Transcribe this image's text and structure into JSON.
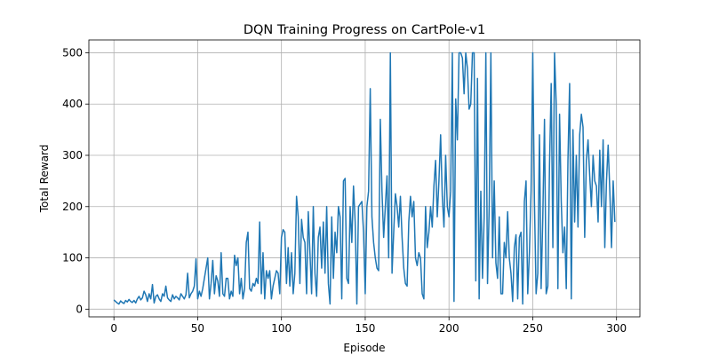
{
  "chart_data": {
    "type": "line",
    "title": "DQN Training Progress on CartPole-v1",
    "xlabel": "Episode",
    "ylabel": "Total Reward",
    "x": [
      0,
      1,
      2,
      3,
      4,
      5,
      6,
      7,
      8,
      9,
      10,
      11,
      12,
      13,
      14,
      15,
      16,
      17,
      18,
      19,
      20,
      21,
      22,
      23,
      24,
      25,
      26,
      27,
      28,
      29,
      30,
      31,
      32,
      33,
      34,
      35,
      36,
      37,
      38,
      39,
      40,
      41,
      42,
      43,
      44,
      45,
      46,
      47,
      48,
      49,
      50,
      51,
      52,
      53,
      54,
      55,
      56,
      57,
      58,
      59,
      60,
      61,
      62,
      63,
      64,
      65,
      66,
      67,
      68,
      69,
      70,
      71,
      72,
      73,
      74,
      75,
      76,
      77,
      78,
      79,
      80,
      81,
      82,
      83,
      84,
      85,
      86,
      87,
      88,
      89,
      90,
      91,
      92,
      93,
      94,
      95,
      96,
      97,
      98,
      99,
      100,
      101,
      102,
      103,
      104,
      105,
      106,
      107,
      108,
      109,
      110,
      111,
      112,
      113,
      114,
      115,
      116,
      117,
      118,
      119,
      120,
      121,
      122,
      123,
      124,
      125,
      126,
      127,
      128,
      129,
      130,
      131,
      132,
      133,
      134,
      135,
      136,
      137,
      138,
      139,
      140,
      141,
      142,
      143,
      144,
      145,
      146,
      147,
      148,
      149,
      150,
      151,
      152,
      153,
      154,
      155,
      156,
      157,
      158,
      159,
      160,
      161,
      162,
      163,
      164,
      165,
      166,
      167,
      168,
      169,
      170,
      171,
      172,
      173,
      174,
      175,
      176,
      177,
      178,
      179,
      180,
      181,
      182,
      183,
      184,
      185,
      186,
      187,
      188,
      189,
      190,
      191,
      192,
      193,
      194,
      195,
      196,
      197,
      198,
      199,
      200,
      201,
      202,
      203,
      204,
      205,
      206,
      207,
      208,
      209,
      210,
      211,
      212,
      213,
      214,
      215,
      216,
      217,
      218,
      219,
      220,
      221,
      222,
      223,
      224,
      225,
      226,
      227,
      228,
      229,
      230,
      231,
      232,
      233,
      234,
      235,
      236,
      237,
      238,
      239,
      240,
      241,
      242,
      243,
      244,
      245,
      246,
      247,
      248,
      249,
      250,
      251,
      252,
      253,
      254,
      255,
      256,
      257,
      258,
      259,
      260,
      261,
      262,
      263,
      264,
      265,
      266,
      267,
      268,
      269,
      270,
      271,
      272,
      273,
      274,
      275,
      276,
      277,
      278,
      279,
      280,
      281,
      282,
      283,
      284,
      285,
      286,
      287,
      288,
      289,
      290,
      291,
      292,
      293,
      294,
      295,
      296,
      297,
      298,
      299
    ],
    "series": [
      {
        "name": "Total Reward",
        "color": "#1f77b4",
        "values": [
          18,
          15,
          12,
          10,
          16,
          13,
          11,
          17,
          14,
          19,
          15,
          13,
          17,
          12,
          20,
          25,
          18,
          22,
          35,
          28,
          15,
          30,
          20,
          48,
          12,
          25,
          28,
          20,
          15,
          30,
          25,
          45,
          22,
          18,
          15,
          28,
          20,
          25,
          22,
          18,
          30,
          25,
          20,
          28,
          70,
          22,
          30,
          35,
          45,
          98,
          20,
          35,
          25,
          40,
          60,
          80,
          100,
          20,
          50,
          95,
          30,
          65,
          55,
          25,
          110,
          30,
          25,
          60,
          60,
          20,
          35,
          25,
          105,
          85,
          100,
          30,
          60,
          20,
          40,
          130,
          150,
          40,
          35,
          50,
          45,
          60,
          50,
          170,
          30,
          110,
          20,
          75,
          60,
          75,
          20,
          45,
          60,
          75,
          70,
          30,
          140,
          155,
          150,
          50,
          120,
          45,
          110,
          30,
          70,
          220,
          180,
          50,
          175,
          140,
          130,
          30,
          190,
          110,
          30,
          200,
          70,
          25,
          140,
          160,
          80,
          170,
          70,
          200,
          50,
          10,
          180,
          60,
          150,
          110,
          200,
          180,
          20,
          250,
          255,
          60,
          50,
          200,
          130,
          240,
          170,
          10,
          200,
          205,
          210,
          150,
          30,
          200,
          230,
          430,
          180,
          130,
          100,
          80,
          75,
          370,
          230,
          140,
          200,
          260,
          100,
          500,
          70,
          150,
          225,
          200,
          160,
          220,
          140,
          80,
          50,
          45,
          170,
          220,
          180,
          210,
          100,
          85,
          110,
          100,
          30,
          20,
          200,
          120,
          150,
          200,
          160,
          240,
          290,
          180,
          250,
          340,
          220,
          160,
          300,
          200,
          180,
          230,
          500,
          15,
          410,
          330,
          500,
          500,
          490,
          420,
          500,
          470,
          390,
          400,
          500,
          500,
          55,
          450,
          20,
          230,
          60,
          180,
          500,
          50,
          200,
          500,
          100,
          250,
          90,
          60,
          180,
          30,
          30,
          130,
          100,
          190,
          100,
          70,
          15,
          120,
          145,
          20,
          140,
          150,
          10,
          210,
          250,
          30,
          110,
          230,
          500,
          210,
          30,
          70,
          340,
          40,
          180,
          370,
          30,
          45,
          280,
          440,
          120,
          500,
          400,
          40,
          380,
          210,
          110,
          160,
          40,
          290,
          440,
          20,
          350,
          170,
          300,
          160,
          340,
          380,
          355,
          140,
          290,
          330,
          260,
          200,
          300,
          250,
          240,
          170,
          310,
          200,
          330,
          120,
          250,
          320,
          230,
          120,
          250,
          170
        ]
      }
    ],
    "xlim": [
      -14.95,
      313.95
    ],
    "ylim": [
      -15,
      525
    ],
    "xticks": [
      0,
      50,
      100,
      150,
      200,
      250,
      300
    ],
    "yticks": [
      0,
      100,
      200,
      300,
      400,
      500
    ],
    "grid": true
  }
}
